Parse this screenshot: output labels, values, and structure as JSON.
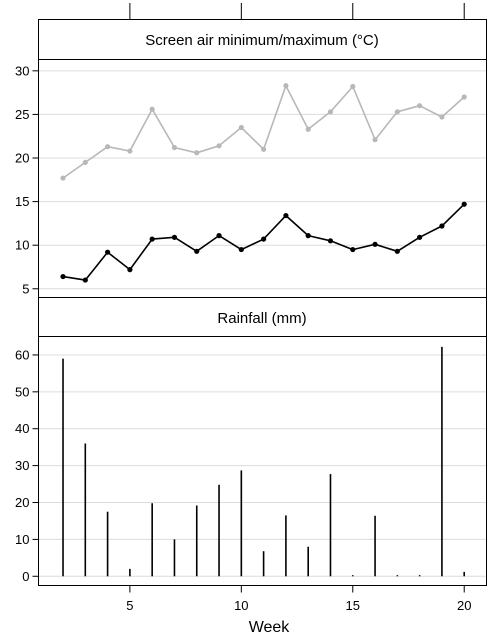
{
  "chart_data": [
    {
      "type": "line",
      "title": "Screen air minimum/maximum (°C)",
      "xlabel": "Week",
      "ylabel": "",
      "xlim": [
        0.9,
        21.0
      ],
      "ylim": [
        4.0,
        31.3
      ],
      "yticks": [
        5,
        10,
        15,
        20,
        25,
        30
      ],
      "grid": "horizontal",
      "x": [
        2,
        3,
        4,
        5,
        6,
        7,
        8,
        9,
        10,
        11,
        12,
        13,
        14,
        15,
        16,
        17,
        18,
        19,
        20
      ],
      "series": [
        {
          "role": "maximum",
          "color": "#b8b8b8",
          "values": [
            17.7,
            19.5,
            21.3,
            20.8,
            25.6,
            21.2,
            20.6,
            21.4,
            23.5,
            21.0,
            28.3,
            23.3,
            25.3,
            28.2,
            22.1,
            25.3,
            26.0,
            24.7,
            27.0
          ]
        },
        {
          "role": "minimum",
          "color": "#000000",
          "values": [
            6.4,
            6.0,
            9.2,
            7.2,
            10.7,
            10.9,
            9.3,
            11.1,
            9.5,
            10.7,
            13.4,
            11.1,
            10.5,
            9.5,
            10.1,
            9.3,
            10.9,
            12.2,
            14.7
          ]
        }
      ]
    },
    {
      "type": "bar",
      "title": "Rainfall (mm)",
      "xlabel": "Week",
      "ylabel": "",
      "xlim": [
        0.9,
        21.0
      ],
      "ylim": [
        -2.5,
        65.0
      ],
      "yticks": [
        0,
        10,
        20,
        30,
        40,
        50,
        60
      ],
      "xticks": [
        5,
        10,
        15,
        20
      ],
      "grid": "horizontal",
      "x": [
        2,
        3,
        4,
        5,
        6,
        7,
        8,
        9,
        10,
        11,
        12,
        13,
        14,
        15,
        16,
        17,
        18,
        19,
        20
      ],
      "values": [
        59.0,
        36.0,
        17.5,
        2.0,
        19.8,
        10.0,
        19.2,
        24.8,
        28.7,
        6.8,
        16.5,
        8.0,
        27.7,
        0.3,
        16.4,
        0.3,
        0.3,
        62.2,
        1.2
      ]
    }
  ]
}
